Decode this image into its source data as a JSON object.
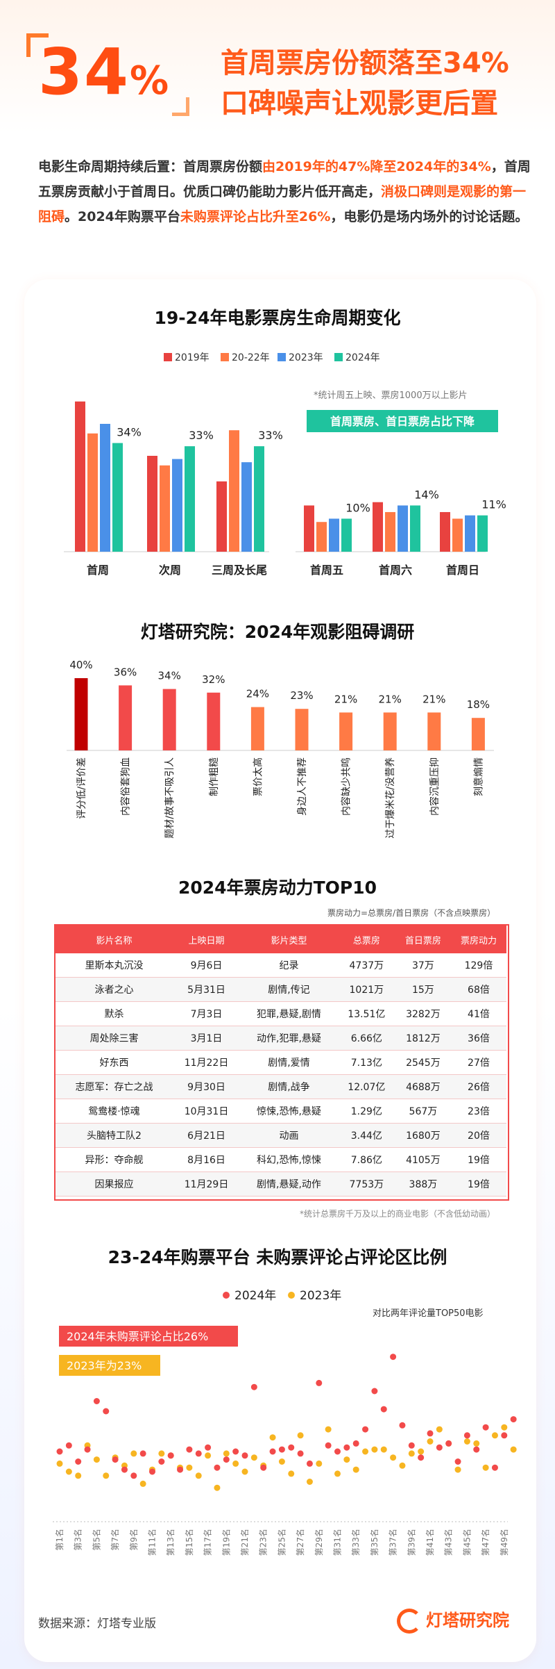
{
  "hero": {
    "big_number": "34",
    "big_unit": "%",
    "title_line1": "首周票房份额落至34%",
    "title_line2": "口碑噪声让观影更后置"
  },
  "intro": {
    "p1": "电影生命周期持续后置：首周票房份额",
    "h1": "由2019年的47%降至2024年的34%",
    "p2": "，首周五票房贡献小于首周日。优质口碑仍能助力影片低开高走，",
    "h2": "消极口碑则是观影的第一阻碍",
    "p3": "。2024年购票平台",
    "h3": "未购票评论占比升至26%",
    "p4": "，电影仍是场内场外的讨论话题。"
  },
  "colors": {
    "c2019": "#e8423f",
    "c2022": "#ff7a45",
    "c2023": "#4a90e8",
    "c2024": "#1fc39e",
    "red": "#f24a4a",
    "darkred": "#c00000",
    "orange": "#ff7a45",
    "yellow": "#f7b521"
  },
  "chart1": {
    "title": "19-24年电影票房生命周期变化",
    "note": "*统计周五上映、票房1000万以上影片",
    "callout": "首周票房、首日票房占比下降"
  },
  "chart2": {
    "title": "灯塔研究院：2024年观影阻碍调研"
  },
  "chart3": {
    "title": "2024年票房动力TOP10",
    "formula": "票房动力=总票房/首日票房（不含点映票房）",
    "footnote": "*统计总票房千万及以上的商业电影（不含低幼动画）"
  },
  "chart4": {
    "title": "23-24年购票平台 未购票评论占评论区比例",
    "subnote": "对比两年评论量TOP50电影",
    "tag2024": "2024年未购票评论占比26%",
    "tag2023": "2023年为23%"
  },
  "footer": {
    "source": "数据来源：灯塔专业版",
    "logo": "灯塔研究院"
  },
  "chart_data": [
    {
      "type": "bar",
      "title": "19-24年电影票房生命周期变化",
      "series_names": [
        "2019年",
        "20-22年",
        "2023年",
        "2024年"
      ],
      "groups": [
        {
          "categories": [
            "首周",
            "次周",
            "三周及长尾"
          ],
          "series": [
            {
              "name": "2019年",
              "values": [
                47,
                30,
                22
              ]
            },
            {
              "name": "20-22年",
              "values": [
                37,
                27,
                38
              ]
            },
            {
              "name": "2023年",
              "values": [
                40,
                29,
                28
              ]
            },
            {
              "name": "2024年",
              "values": [
                34,
                33,
                33
              ]
            }
          ],
          "ylim": [
            0,
            50
          ],
          "labels": [
            "34%",
            "33%",
            "33%"
          ]
        },
        {
          "categories": [
            "首周五",
            "首周六",
            "首周日"
          ],
          "series": [
            {
              "name": "2019年",
              "values": [
                14,
                15,
                12
              ]
            },
            {
              "name": "20-22年",
              "values": [
                9,
                12,
                10
              ]
            },
            {
              "name": "2023年",
              "values": [
                10,
                14,
                11
              ]
            },
            {
              "name": "2024年",
              "values": [
                10,
                14,
                11
              ]
            }
          ],
          "ylim": [
            0,
            30
          ],
          "labels": [
            "10%",
            "14%",
            "11%"
          ]
        }
      ]
    },
    {
      "type": "bar",
      "title": "灯塔研究院：2024年观影阻碍调研",
      "categories": [
        "评分低/评价差",
        "内容俗套狗血",
        "题材/故事不吸引人",
        "制作粗糙",
        "票价太高",
        "身边人不推荐",
        "内容缺少共鸣",
        "过于爆米花/没营养",
        "内容沉重压抑",
        "刻意煽情"
      ],
      "values": [
        40,
        36,
        34,
        32,
        24,
        23,
        21,
        21,
        21,
        18
      ],
      "labels": [
        "40%",
        "36%",
        "34%",
        "32%",
        "24%",
        "23%",
        "21%",
        "21%",
        "21%",
        "18%"
      ],
      "ylim": [
        0,
        45
      ]
    },
    {
      "type": "table",
      "title": "2024年票房动力TOP10",
      "columns": [
        "影片名称",
        "上映日期",
        "影片类型",
        "总票房",
        "首日票房",
        "票房动力"
      ],
      "rows": [
        [
          "里斯本丸沉没",
          "9月6日",
          "纪录",
          "4737万",
          "37万",
          "129倍"
        ],
        [
          "泳者之心",
          "5月31日",
          "剧情,传记",
          "1021万",
          "15万",
          "68倍"
        ],
        [
          "默杀",
          "7月3日",
          "犯罪,悬疑,剧情",
          "13.51亿",
          "3282万",
          "41倍"
        ],
        [
          "周处除三害",
          "3月1日",
          "动作,犯罪,悬疑",
          "6.66亿",
          "1812万",
          "36倍"
        ],
        [
          "好东西",
          "11月22日",
          "剧情,爱情",
          "7.13亿",
          "2545万",
          "27倍"
        ],
        [
          "志愿军：存亡之战",
          "9月30日",
          "剧情,战争",
          "12.07亿",
          "4688万",
          "26倍"
        ],
        [
          "鸳鸯楼·惊魂",
          "10月31日",
          "惊悚,恐怖,悬疑",
          "1.29亿",
          "567万",
          "23倍"
        ],
        [
          "头脑特工队2",
          "6月21日",
          "动画",
          "3.44亿",
          "1680万",
          "20倍"
        ],
        [
          "异形：夺命舰",
          "8月16日",
          "科幻,恐怖,惊悚",
          "7.86亿",
          "4105万",
          "19倍"
        ],
        [
          "因果报应",
          "11月29日",
          "剧情,悬疑,动作",
          "7753万",
          "388万",
          "19倍"
        ]
      ]
    },
    {
      "type": "scatter",
      "title": "23-24年购票平台 未购票评论占评论区比例",
      "x": [
        "第1名",
        "第2名",
        "第3名",
        "第4名",
        "第5名",
        "第6名",
        "第7名",
        "第8名",
        "第9名",
        "第10名",
        "第11名",
        "第12名",
        "第13名",
        "第14名",
        "第15名",
        "第16名",
        "第17名",
        "第18名",
        "第19名",
        "第20名",
        "第21名",
        "第22名",
        "第23名",
        "第24名",
        "第25名",
        "第26名",
        "第27名",
        "第28名",
        "第29名",
        "第30名",
        "第31名",
        "第32名",
        "第33名",
        "第34名",
        "第35名",
        "第36名",
        "第37名",
        "第38名",
        "第39名",
        "第40名",
        "第41名",
        "第42名",
        "第43名",
        "第44名",
        "第45名",
        "第46名",
        "第47名",
        "第48名",
        "第49名",
        "第50名"
      ],
      "xtick_labels": [
        "第1名",
        "第3名",
        "第5名",
        "第7名",
        "第9名",
        "第11名",
        "第13名",
        "第15名",
        "第17名",
        "第19名",
        "第21名",
        "第23名",
        "第25名",
        "第27名",
        "第29名",
        "第31名",
        "第33名",
        "第35名",
        "第37名",
        "第39名",
        "第41名",
        "第43名",
        "第45名",
        "第47名",
        "第49名"
      ],
      "series": [
        {
          "name": "2024年",
          "values": [
            30,
            33,
            25,
            31,
            55,
            50,
            26,
            21,
            18,
            29,
            20,
            25,
            28,
            21,
            31,
            29,
            32,
            22,
            26,
            30,
            28,
            62,
            22,
            30,
            31,
            32,
            29,
            24,
            64,
            33,
            30,
            32,
            34,
            41,
            60,
            51,
            77,
            43,
            33,
            27,
            39,
            32,
            34,
            25,
            38,
            31,
            42,
            22,
            38,
            46
          ]
        },
        {
          "name": "2023年",
          "values": [
            24,
            20,
            18,
            33,
            26,
            18,
            27,
            23,
            29,
            14,
            21,
            29,
            28,
            22,
            22,
            18,
            28,
            12,
            29,
            24,
            20,
            27,
            23,
            37,
            25,
            19,
            38,
            15,
            24,
            41,
            19,
            26,
            21,
            30,
            31,
            31,
            27,
            23,
            29,
            30,
            35,
            41,
            34,
            21,
            35,
            34,
            22,
            38,
            42,
            31
          ]
        }
      ],
      "ylim": [
        0,
        80
      ]
    }
  ]
}
